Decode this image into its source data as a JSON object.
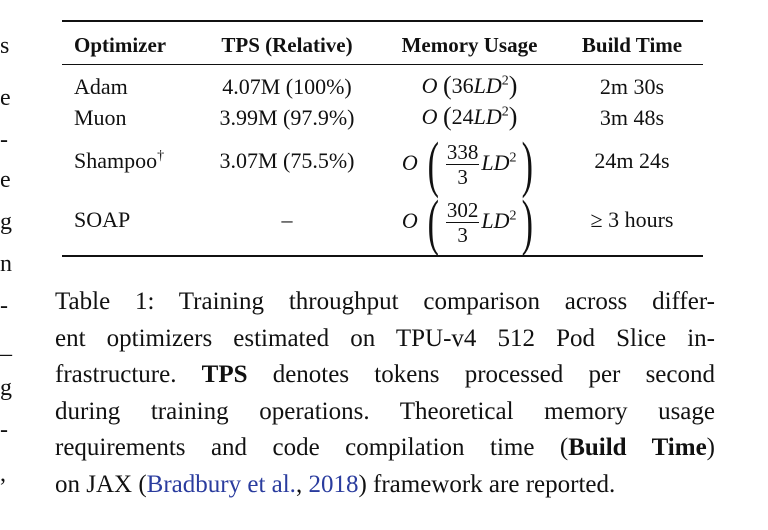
{
  "margin_fragments": [
    "s",
    "e",
    "-",
    "e",
    "g",
    "n",
    "-",
    "_",
    "g",
    "-",
    ","
  ],
  "table": {
    "headers": [
      "Optimizer",
      "TPS (Relative)",
      "Memory Usage",
      "Build Time"
    ],
    "rows": [
      {
        "optimizer": "Adam",
        "dagger": "",
        "tps": "4.07M (100%)",
        "mem_coef": "36",
        "mem_num": "",
        "mem_den": "",
        "build": "2m 30s"
      },
      {
        "optimizer": "Muon",
        "dagger": "",
        "tps": "3.99M (97.9%)",
        "mem_coef": "24",
        "mem_num": "",
        "mem_den": "",
        "build": "3m 48s"
      },
      {
        "optimizer": "Shampoo",
        "dagger": "†",
        "tps": "3.07M (75.5%)",
        "mem_coef": "",
        "mem_num": "338",
        "mem_den": "3",
        "build": "24m 24s"
      },
      {
        "optimizer": "SOAP",
        "dagger": "",
        "tps": "–",
        "mem_coef": "",
        "mem_num": "302",
        "mem_den": "3",
        "build": "≥ 3 hours"
      }
    ]
  },
  "caption": {
    "l1": "Table 1: Training throughput comparison across differ-",
    "l2": "ent optimizers estimated on TPU-v4 512 Pod Slice in-",
    "l3_a": "frastructure. ",
    "l3_b": "TPS",
    "l3_c": " denotes tokens processed per second",
    "l4": "during training operations. Theoretical memory usage",
    "l5_a": "requirements and code compilation time (",
    "l5_b": "Build Time",
    "l5_c": ")",
    "l6_a": "on JAX (",
    "l6_cite_author": "Bradbury et al.",
    "l6_sep": ", ",
    "l6_cite_year": "2018",
    "l6_c": ") framework are reported."
  }
}
